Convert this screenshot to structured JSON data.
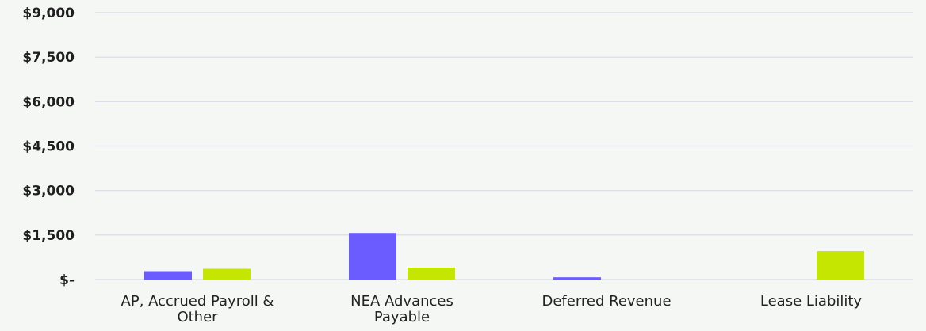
{
  "chart_data": {
    "type": "bar",
    "categories": [
      [
        "AP, Accrued Payroll &",
        "Other"
      ],
      [
        "NEA Advances",
        "Payable"
      ],
      [
        "Deferred Revenue"
      ],
      [
        "Lease Liability"
      ]
    ],
    "series": [
      {
        "values": [
          280,
          1570,
          75,
          0
        ],
        "color": "#6b5cff"
      },
      {
        "values": [
          360,
          400,
          0,
          960
        ],
        "color": "#c5e600"
      }
    ],
    "ylim": [
      0,
      9000
    ],
    "yticks": [
      0,
      1500,
      3000,
      4500,
      6000,
      7500,
      9000
    ],
    "ytick_labels": [
      "$-",
      "$1,500",
      "$3,000",
      "$4,500",
      "$6,000",
      "$7,500",
      "$9,000"
    ],
    "grid": true,
    "title": "",
    "xlabel": "",
    "ylabel": ""
  }
}
